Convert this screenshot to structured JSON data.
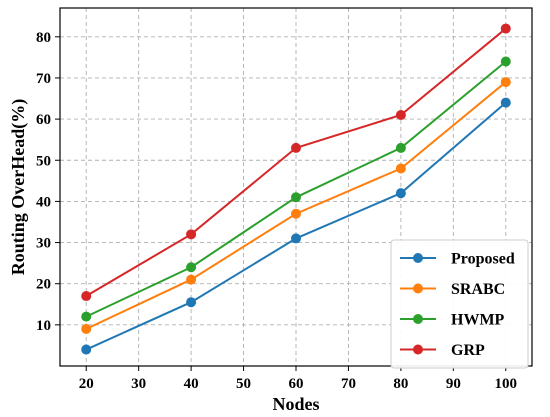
{
  "chart_data": {
    "type": "line",
    "title": "",
    "xlabel": "Nodes",
    "ylabel": "Routing OverHead(%)",
    "x": [
      20,
      40,
      60,
      80,
      100
    ],
    "xlim": [
      15,
      105
    ],
    "ylim": [
      0,
      87
    ],
    "xticks": [
      20,
      30,
      40,
      50,
      60,
      70,
      80,
      90,
      100
    ],
    "yticks": [
      10,
      20,
      30,
      40,
      50,
      60,
      70,
      80
    ],
    "grid": true,
    "legend_position": "bottom-right",
    "series": [
      {
        "name": "Proposed",
        "color": "#1f77b4",
        "values": [
          4,
          15.5,
          31,
          42,
          64
        ]
      },
      {
        "name": "SRABC",
        "color": "#ff7f0e",
        "values": [
          9,
          21,
          37,
          48,
          69
        ]
      },
      {
        "name": "HWMP",
        "color": "#2ca02c",
        "values": [
          12,
          24,
          41,
          53,
          74
        ]
      },
      {
        "name": "GRP",
        "color": "#d62728",
        "values": [
          17,
          32,
          53,
          61,
          82
        ]
      }
    ]
  }
}
